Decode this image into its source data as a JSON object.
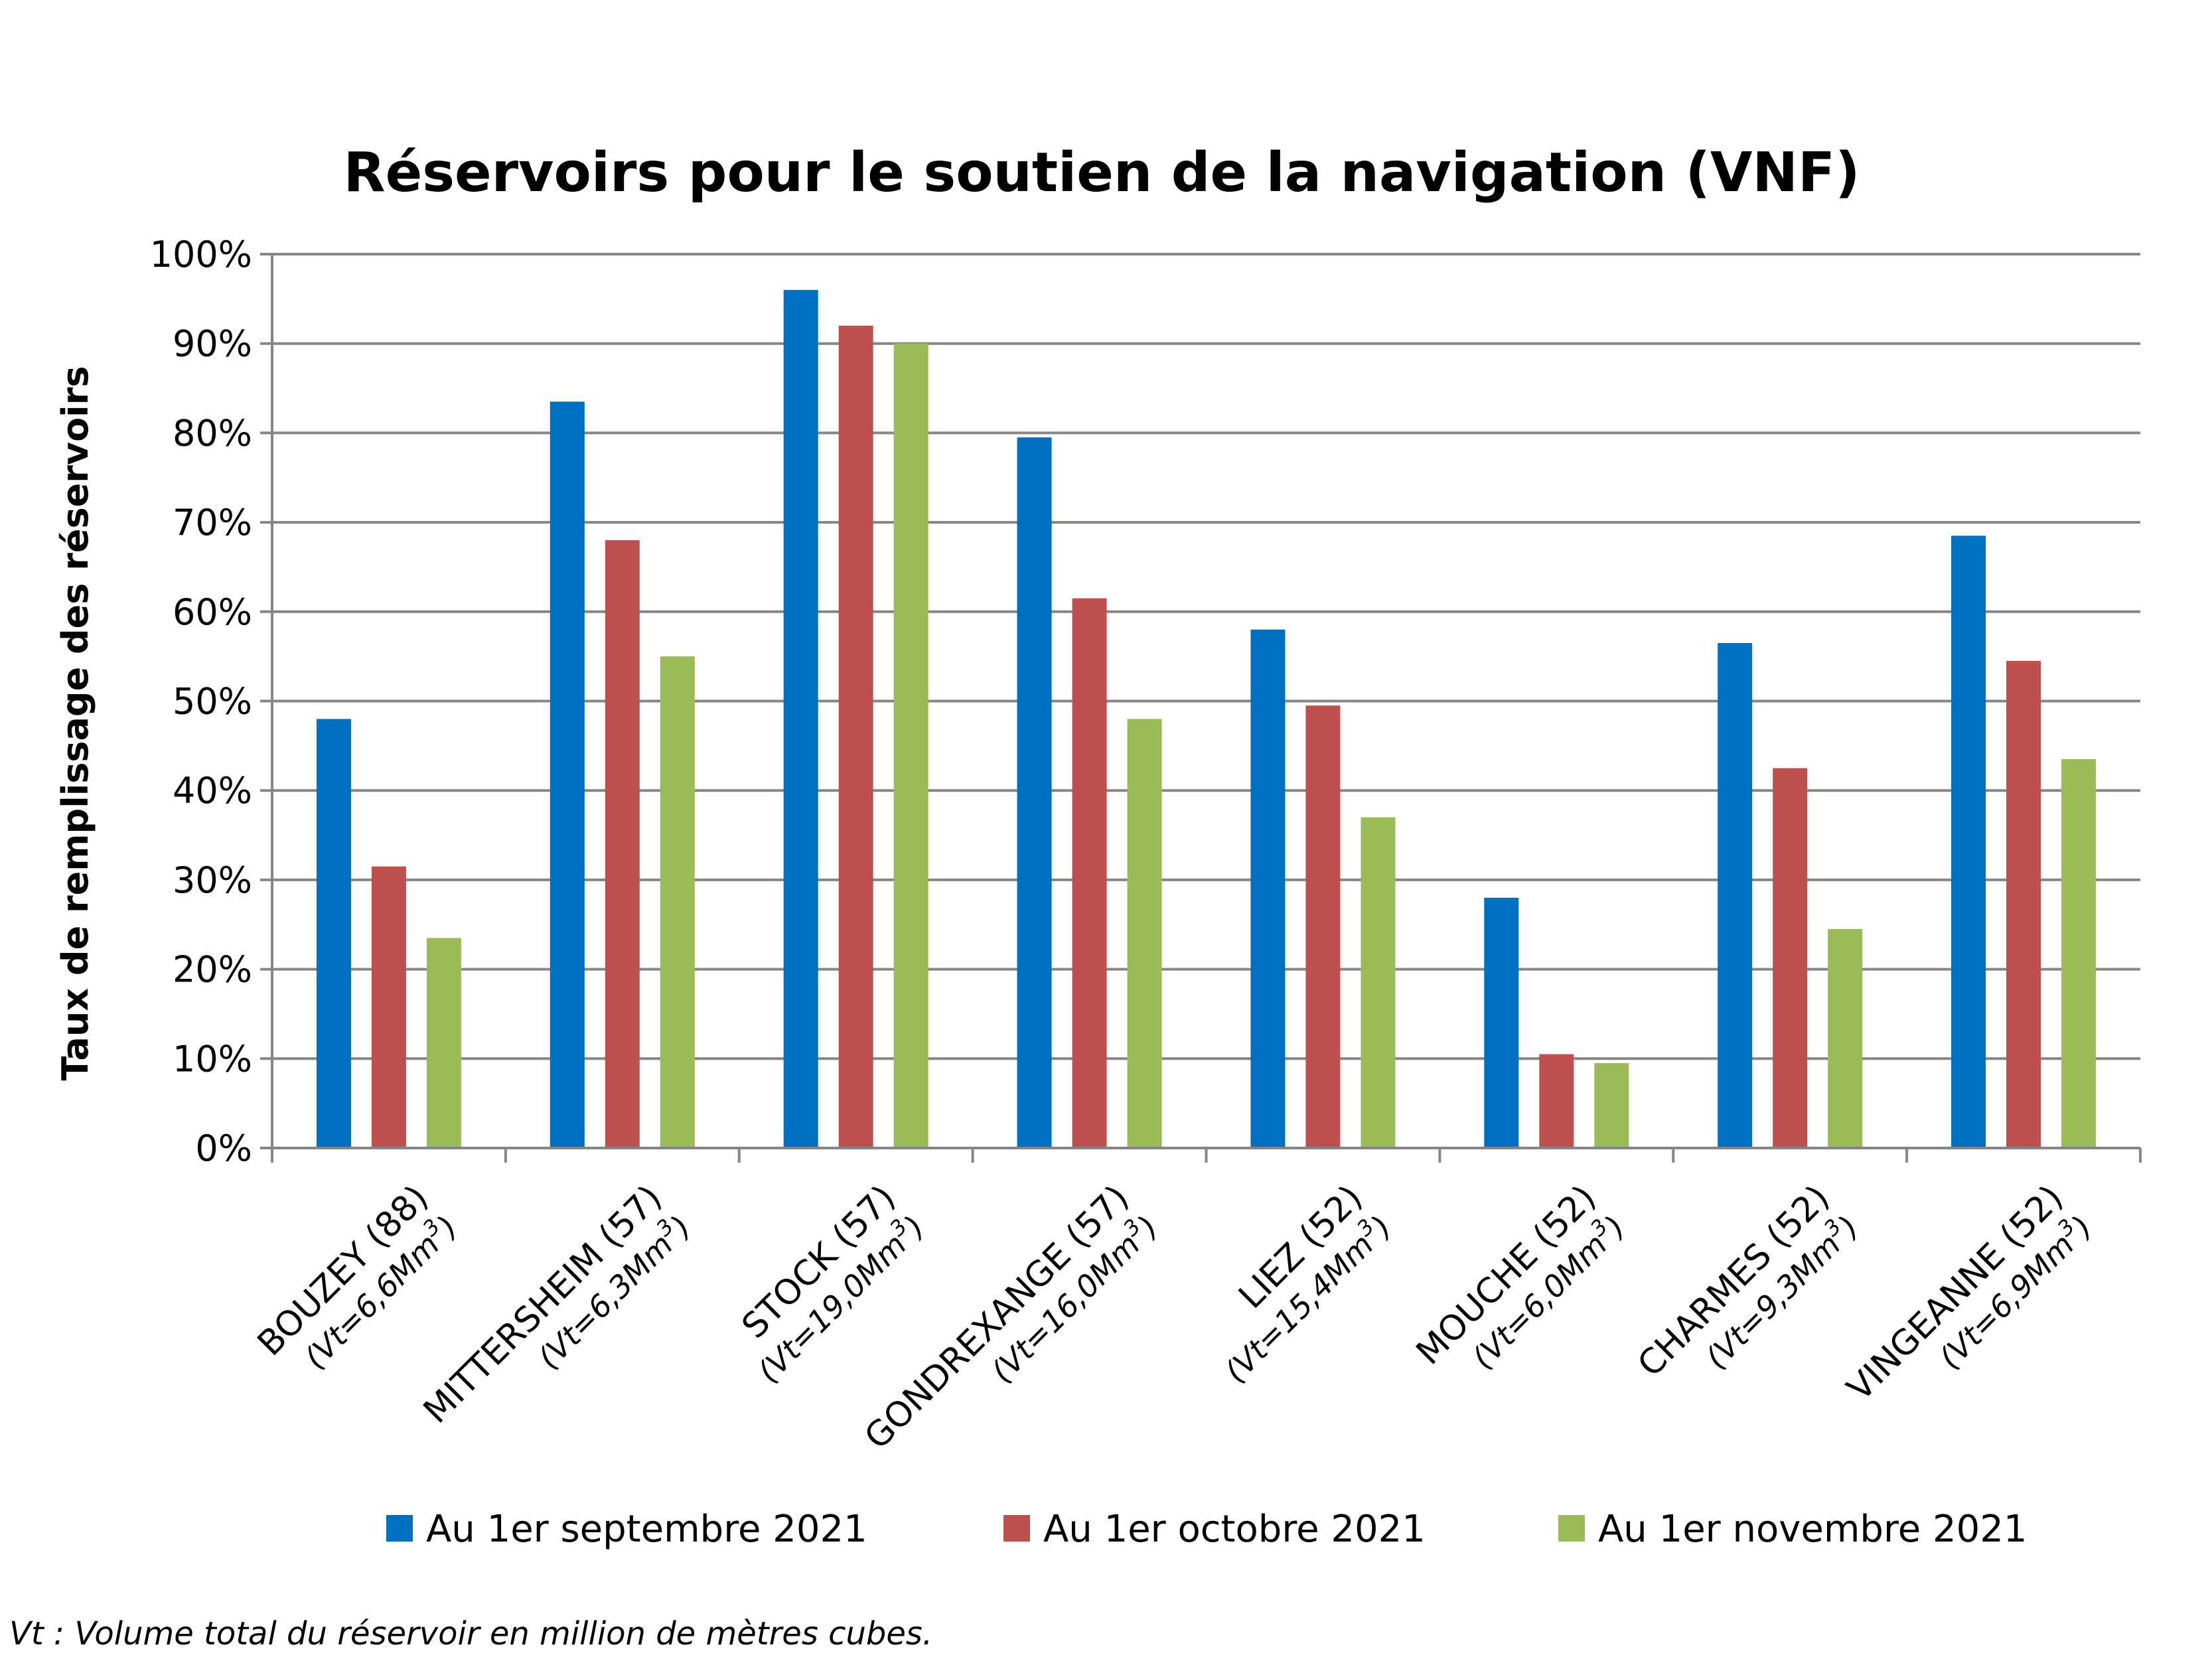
{
  "chart_data": {
    "type": "bar",
    "title": "Réservoirs pour le soutien de la navigation (VNF)",
    "ylabel": "Taux de remplissage des réservoirs",
    "xlabel": "",
    "ylim": [
      0,
      100
    ],
    "y_ticks": [
      "0%",
      "10%",
      "20%",
      "30%",
      "40%",
      "50%",
      "60%",
      "70%",
      "80%",
      "90%",
      "100%"
    ],
    "grid": true,
    "legend_position": "bottom",
    "categories": [
      {
        "name": "BOUZEY (88)",
        "sub_prefix": "(Vt=6,6Mm",
        "sup": "3",
        "sub_suffix": ")"
      },
      {
        "name": "MITTERSHEIM (57)",
        "sub_prefix": "(Vt=6,3Mm",
        "sup": "3",
        "sub_suffix": ")"
      },
      {
        "name": "STOCK (57)",
        "sub_prefix": "(Vt=19,0Mm",
        "sup": "3",
        "sub_suffix": ")"
      },
      {
        "name": "GONDREXANGE (57)",
        "sub_prefix": "(Vt=16,0Mm",
        "sup": "3",
        "sub_suffix": ")"
      },
      {
        "name": "LIEZ (52)",
        "sub_prefix": "(Vt=15,4Mm",
        "sup": "3",
        "sub_suffix": ")"
      },
      {
        "name": "MOUCHE (52)",
        "sub_prefix": "(Vt=6,0Mm",
        "sup": "3",
        "sub_suffix": ")"
      },
      {
        "name": "CHARMES (52)",
        "sub_prefix": "(Vt=9,3Mm",
        "sup": "3",
        "sub_suffix": ")"
      },
      {
        "name": "VINGEANNE (52)",
        "sub_prefix": "(Vt=6,9Mm",
        "sup": "3",
        "sub_suffix": ")"
      }
    ],
    "series": [
      {
        "name": "Au 1er septembre 2021",
        "color": "#0070C0",
        "values": [
          48,
          83.5,
          96,
          79.5,
          58,
          28,
          56.5,
          68.5
        ]
      },
      {
        "name": "Au 1er octobre 2021",
        "color": "#C0504D",
        "values": [
          31.5,
          68,
          92,
          61.5,
          49.5,
          10.5,
          42.5,
          54.5
        ]
      },
      {
        "name": "Au 1er novembre 2021",
        "color": "#9BBB59",
        "values": [
          23.5,
          55,
          90,
          48,
          37,
          9.5,
          24.5,
          43.5
        ]
      }
    ]
  },
  "footnote": "Vt : Volume total du réservoir en million de mètres cubes."
}
